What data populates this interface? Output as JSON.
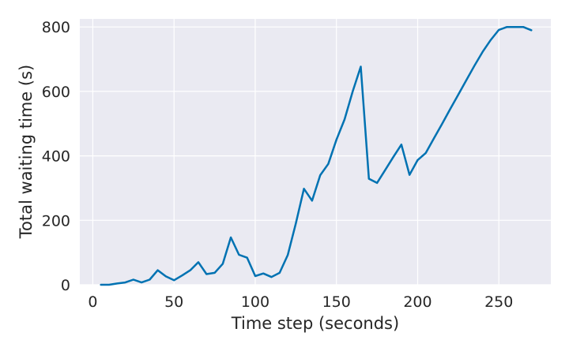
{
  "chart_data": {
    "type": "line",
    "title": "",
    "xlabel": "Time step (seconds)",
    "ylabel": "Total waiting time (s)",
    "xlim": [
      -8,
      282
    ],
    "ylim": [
      0,
      825
    ],
    "xticks": [
      0,
      50,
      100,
      150,
      200,
      250
    ],
    "yticks": [
      0,
      200,
      400,
      600,
      800
    ],
    "grid": true,
    "background_color": "#eaeaf2",
    "series": [
      {
        "color": "#0072b2",
        "x": [
          5,
          10,
          15,
          20,
          25,
          30,
          35,
          40,
          45,
          50,
          55,
          60,
          65,
          70,
          75,
          80,
          85,
          90,
          95,
          100,
          105,
          110,
          115,
          120,
          125,
          130,
          135,
          140,
          145,
          150,
          155,
          160,
          165,
          170,
          175,
          180,
          185,
          190,
          195,
          200,
          205,
          210,
          215,
          220,
          225,
          230,
          235,
          240,
          245,
          250,
          255,
          260,
          265,
          270
        ],
        "y": [
          0,
          0,
          4,
          7,
          16,
          7,
          16,
          45,
          26,
          14,
          29,
          45,
          70,
          33,
          37,
          65,
          147,
          93,
          84,
          27,
          35,
          24,
          37,
          92,
          190,
          298,
          261,
          340,
          375,
          450,
          513,
          600,
          677,
          329,
          316,
          356,
          396,
          435,
          341,
          387,
          409,
          454,
          499,
          545,
          590,
          635,
          680,
          723,
          760,
          791,
          800,
          800,
          800,
          790
        ]
      }
    ]
  }
}
